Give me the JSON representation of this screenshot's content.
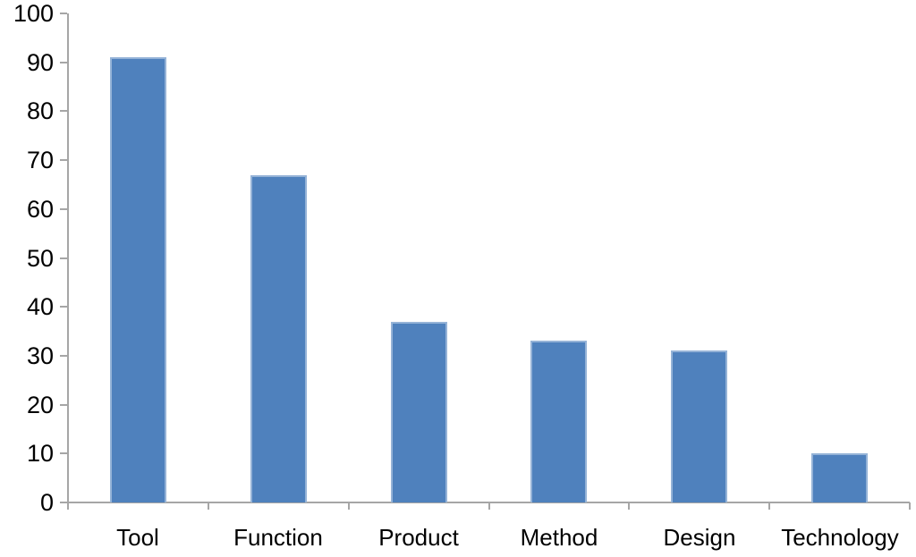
{
  "chart_data": {
    "type": "bar",
    "title": "",
    "xlabel": "",
    "ylabel": "",
    "categories": [
      "Tool",
      "Function",
      "Product",
      "Method",
      "Design",
      "Technology"
    ],
    "values": [
      91,
      67,
      37,
      33,
      31,
      10
    ],
    "ylim": [
      0,
      100
    ],
    "ytick_step": 10,
    "yticks": [
      0,
      10,
      20,
      30,
      40,
      50,
      60,
      70,
      80,
      90,
      100
    ],
    "grid": false,
    "legend": false,
    "colors": {
      "bar_fill": "#4f81bd",
      "bar_border": "#95b3d7",
      "axis": "#a6a6a6",
      "text": "#000000",
      "background": "#ffffff"
    }
  }
}
